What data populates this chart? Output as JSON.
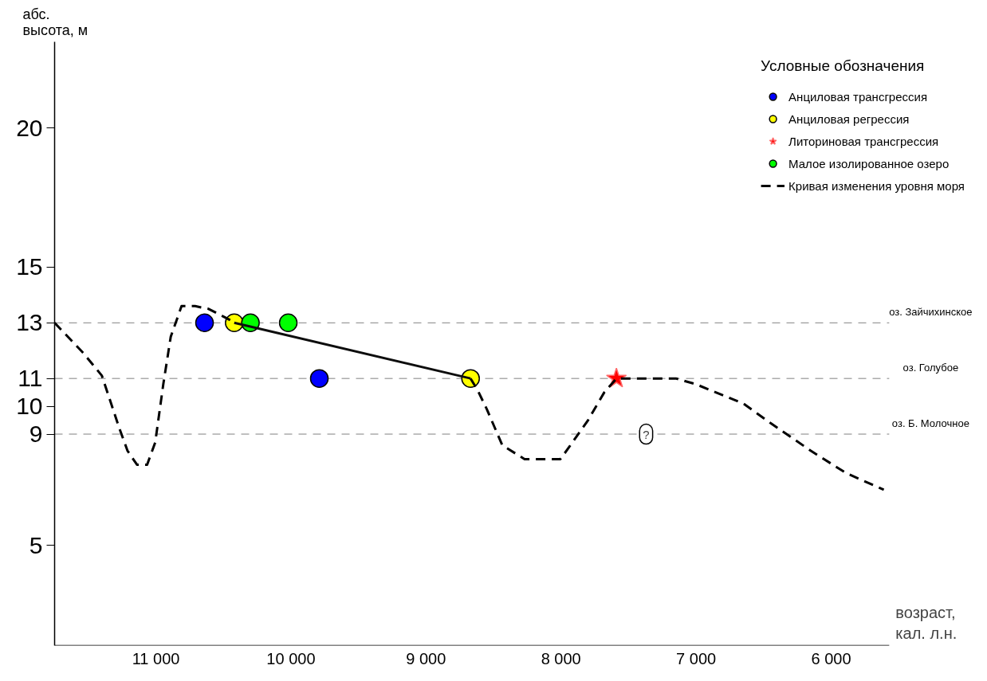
{
  "chart_data": {
    "type": "scatter",
    "xlabel": "возраст, кал. л.н.",
    "ylabel": "абс. высота, м",
    "legend_title": "Условные обозначения",
    "legend": "top right",
    "grid": false,
    "xlim": [
      11750,
      5570
    ],
    "ylim": [
      1.4,
      23.1
    ],
    "xticks": [
      {
        "value": 11000,
        "label": "11 000"
      },
      {
        "value": 10000,
        "label": "10 000"
      },
      {
        "value": 9000,
        "label": "9 000"
      },
      {
        "value": 8000,
        "label": "8 000"
      },
      {
        "value": 7000,
        "label": "7 000"
      },
      {
        "value": 6000,
        "label": "6 000"
      }
    ],
    "yticks": [
      5,
      9,
      10,
      11,
      13,
      15,
      20
    ],
    "series": [
      {
        "name": "Анциловая трансгрессия",
        "marker": "circle",
        "color": "#0000ff",
        "x": [
          10640,
          9790
        ],
        "values": [
          13,
          11
        ]
      },
      {
        "name": "Анциловая регрессия",
        "marker": "circle",
        "color": "#ffff00",
        "x": [
          10420,
          8670
        ],
        "values": [
          13,
          11
        ]
      },
      {
        "name": "Литориновая трансгрессия",
        "marker": "star",
        "color": "#ff0000",
        "x": [
          7590
        ],
        "values": [
          11
        ]
      },
      {
        "name": "Малое изолированное озеро",
        "marker": "circle",
        "color": "#00ff00",
        "x": [
          10300,
          10020
        ],
        "values": [
          13,
          13
        ]
      },
      {
        "name": "Кривая изменения уровня моря",
        "type": "line",
        "line_style": "dashed",
        "color": "#000000",
        "x": [
          11750,
          11535,
          11400,
          11270,
          11210,
          11140,
          11065,
          11005,
          10945,
          10890,
          10810,
          10710,
          10610,
          10450,
          10420,
          8670,
          8620,
          8550,
          8435,
          8270,
          8005,
          7945,
          7800,
          7680,
          7590,
          7390,
          7150,
          7005,
          6650,
          6450,
          6150,
          5890,
          5610
        ],
        "values": [
          13,
          11.9,
          11.1,
          9.2,
          8.4,
          7.9,
          7.9,
          8.7,
          10.8,
          12.5,
          13.6,
          13.6,
          13.5,
          13.1,
          null,
          11,
          10.6,
          9.9,
          8.6,
          8.1,
          8.1,
          8.5,
          9.5,
          10.5,
          11,
          11,
          11,
          10.8,
          10.1,
          9.4,
          8.4,
          7.6,
          7.0
        ]
      },
      {
        "type": "line",
        "line_style": "solid",
        "color": "#0d0d0d",
        "x": [
          10420,
          8670
        ],
        "values": [
          13,
          11
        ]
      }
    ],
    "ref_lines": [
      {
        "axis": "y",
        "value": 13,
        "label": "оз. Зайчихинское",
        "color": "#808080",
        "line_style": "dashed"
      },
      {
        "axis": "y",
        "value": 11,
        "label": "оз. Голубое",
        "color": "#808080",
        "line_style": "dashed"
      },
      {
        "axis": "y",
        "value": 9,
        "label": "оз. Б. Молочное",
        "color": "#808080",
        "line_style": "dashed"
      }
    ],
    "annotations": [
      {
        "text": "?",
        "x": 7370,
        "y": 9
      }
    ]
  }
}
